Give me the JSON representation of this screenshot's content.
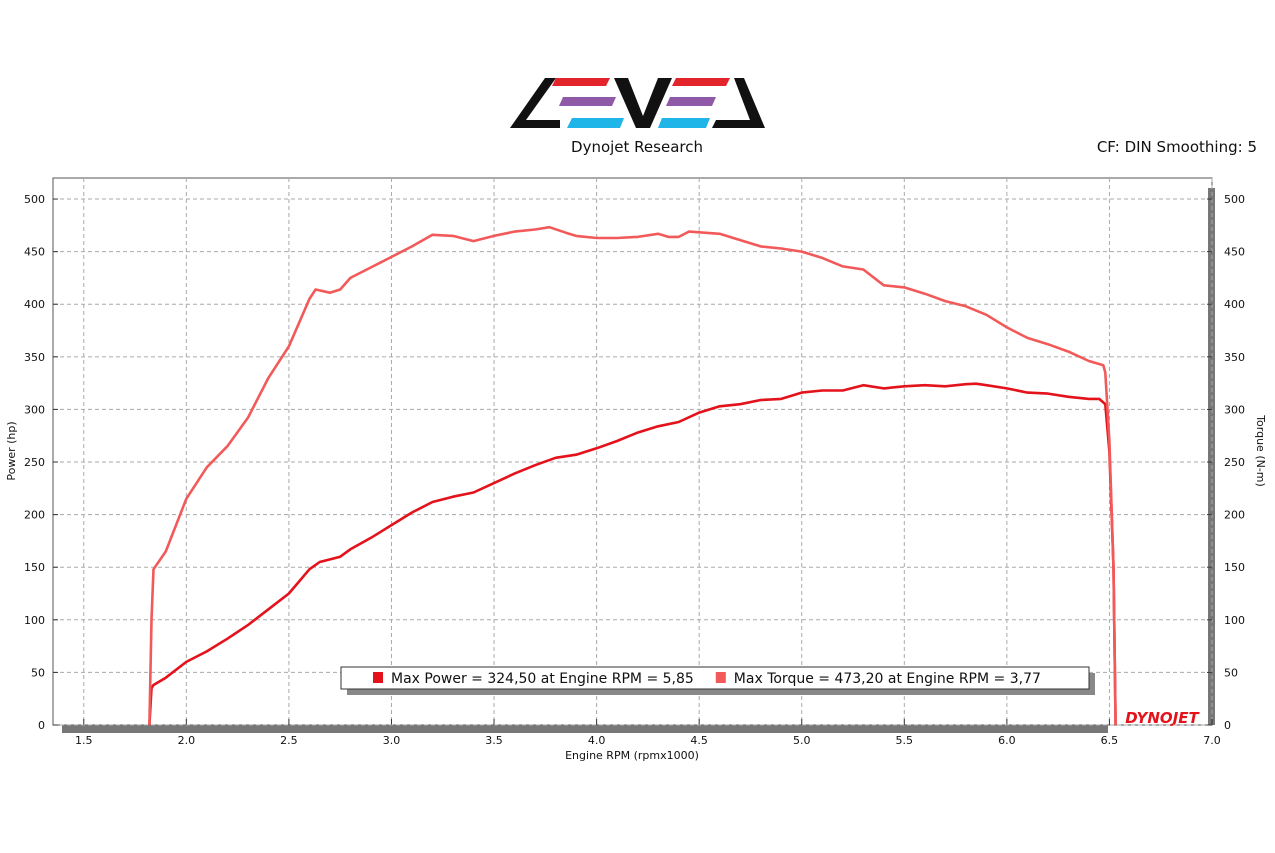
{
  "chart_data": {
    "type": "line",
    "subtitle": "Dynojet Research",
    "note": "CF: DIN Smoothing: 5",
    "brand": "DYNOJET",
    "xlabel": "Engine RPM (rpmx1000)",
    "ylabel": "Power (hp)",
    "y2label": "Torque (N-m)",
    "xlim": [
      1.35,
      7.0
    ],
    "xticks": [
      1.5,
      {
        "value": 2,
        "label": "2.0"
      },
      2.5,
      {
        "value": 3,
        "label": "3.0"
      },
      3.5,
      {
        "value": 4,
        "label": "4.0"
      },
      4.5,
      {
        "value": 5,
        "label": "5.0"
      },
      5.5,
      {
        "value": 6,
        "label": "6.0"
      },
      6.5,
      {
        "value": 7,
        "label": "7.0"
      }
    ],
    "ylim": [
      0,
      520
    ],
    "yticks": [
      0,
      50,
      100,
      150,
      200,
      250,
      300,
      350,
      400,
      450,
      500
    ],
    "y2lim": [
      0,
      520
    ],
    "y2ticks": [
      0,
      50,
      100,
      150,
      200,
      250,
      300,
      350,
      400,
      450,
      500
    ],
    "grid": true,
    "series": [
      {
        "name": "Max Power = 324,50 at Engine RPM = 5,85",
        "color": "#e3121b",
        "x": [
          1.82,
          1.83,
          1.84,
          1.9,
          2.0,
          2.1,
          2.2,
          2.3,
          2.4,
          2.5,
          2.6,
          2.65,
          2.75,
          2.8,
          2.9,
          3.0,
          3.1,
          3.2,
          3.3,
          3.4,
          3.5,
          3.6,
          3.7,
          3.8,
          3.9,
          4.0,
          4.1,
          4.2,
          4.3,
          4.4,
          4.5,
          4.6,
          4.7,
          4.8,
          4.9,
          5.0,
          5.1,
          5.2,
          5.3,
          5.4,
          5.5,
          5.6,
          5.7,
          5.8,
          5.85,
          5.9,
          6.0,
          6.1,
          6.2,
          6.3,
          6.4,
          6.45,
          6.48,
          6.5,
          6.52,
          6.53
        ],
        "values": [
          0,
          35,
          38,
          45,
          60,
          70,
          82,
          95,
          110,
          125,
          148,
          155,
          160,
          167,
          178,
          190,
          202,
          212,
          217,
          221,
          230,
          239,
          247,
          254,
          257,
          263,
          270,
          278,
          284,
          288,
          297,
          303,
          305,
          309,
          310,
          316,
          318,
          318,
          323,
          320,
          322,
          323,
          322,
          324,
          324.5,
          323,
          320,
          316,
          315,
          312,
          310,
          310,
          305,
          260,
          150,
          0
        ]
      },
      {
        "name": "Max Torque = 473,20 at Engine RPM = 3,77",
        "color": "#f25a5a",
        "axis": "y2",
        "x": [
          1.82,
          1.83,
          1.84,
          1.9,
          2.0,
          2.1,
          2.2,
          2.3,
          2.4,
          2.5,
          2.6,
          2.63,
          2.7,
          2.75,
          2.8,
          2.9,
          3.0,
          3.1,
          3.2,
          3.3,
          3.4,
          3.5,
          3.6,
          3.7,
          3.77,
          3.85,
          3.9,
          4.0,
          4.1,
          4.2,
          4.3,
          4.35,
          4.4,
          4.45,
          4.6,
          4.7,
          4.8,
          4.9,
          5.0,
          5.1,
          5.2,
          5.3,
          5.4,
          5.5,
          5.6,
          5.7,
          5.8,
          5.9,
          6.0,
          6.1,
          6.2,
          6.3,
          6.4,
          6.47,
          6.48,
          6.5,
          6.52,
          6.53
        ],
        "values": [
          0,
          100,
          148,
          165,
          215,
          245,
          265,
          292,
          330,
          360,
          405,
          414,
          411,
          414,
          425,
          435,
          445,
          455,
          466,
          465,
          460,
          465,
          469,
          471,
          473.2,
          468,
          465,
          463,
          463,
          464,
          467,
          464,
          464,
          469,
          467,
          461,
          455,
          453,
          450,
          444,
          436,
          433,
          418,
          416,
          410,
          403,
          398,
          390,
          378,
          368,
          362,
          355,
          346,
          342,
          335,
          270,
          150,
          0
        ]
      }
    ]
  }
}
